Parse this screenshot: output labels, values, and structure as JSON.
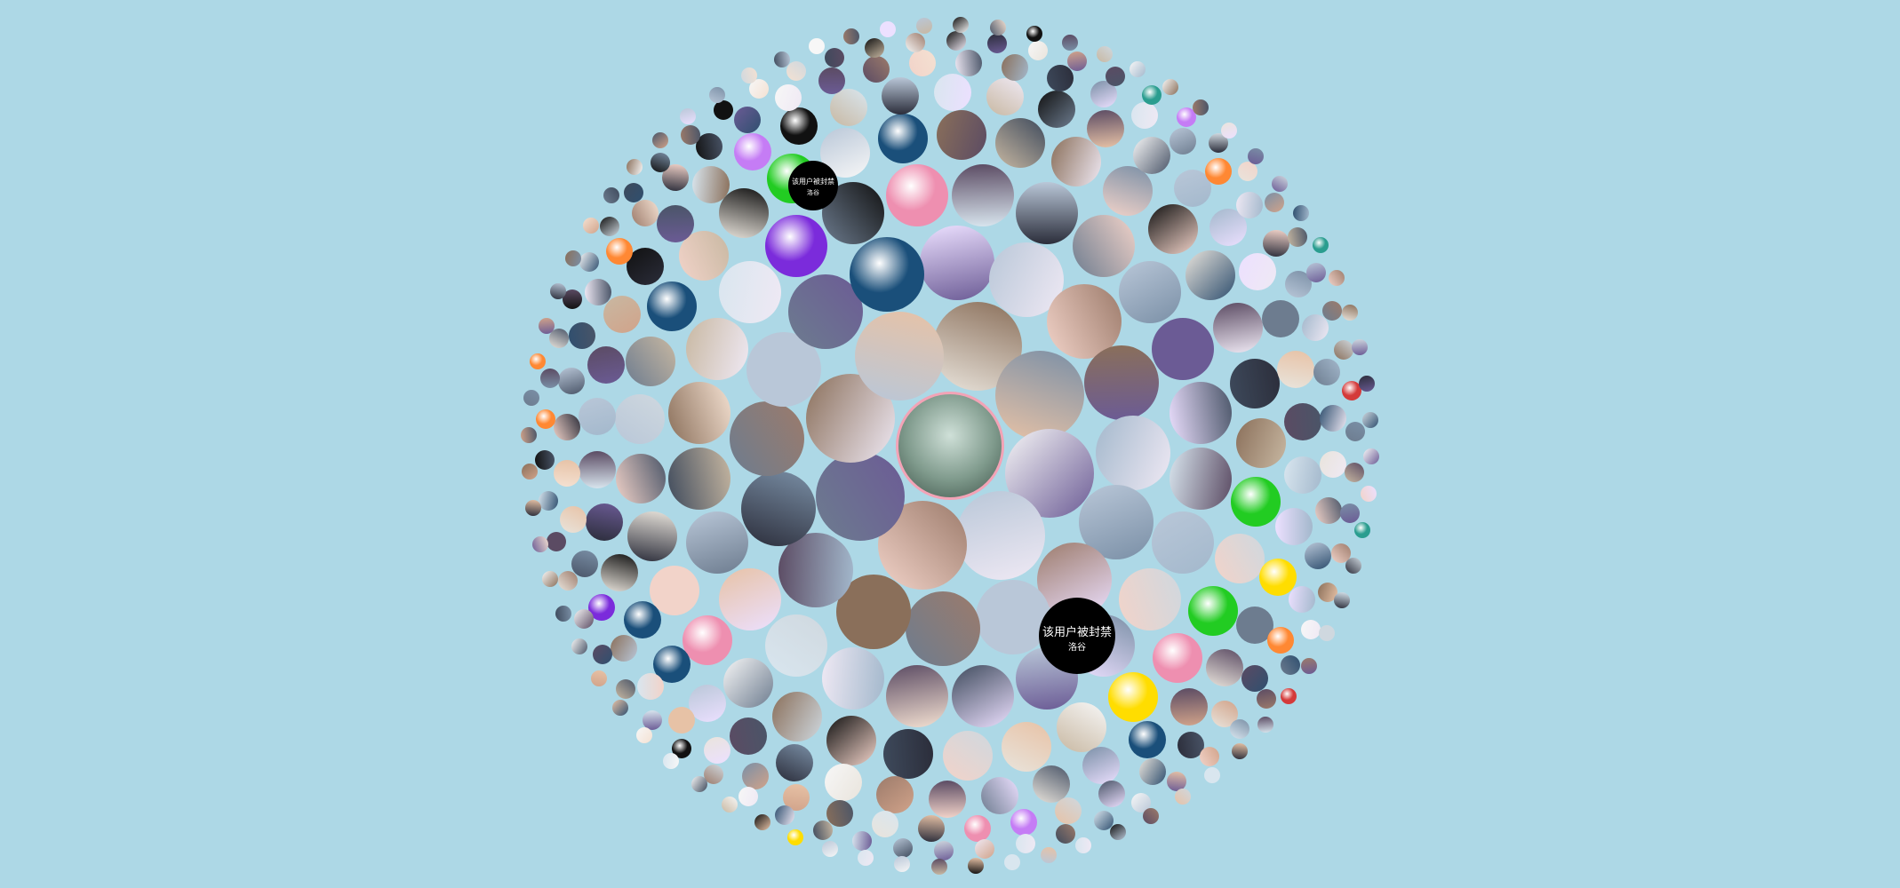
{
  "background_color": "#add8e6",
  "banned_avatars": [
    {
      "line1": "该用户被封禁",
      "line2": "洛谷"
    },
    {
      "line1": "该用户被封禁",
      "line2": "洛谷"
    }
  ],
  "ring_counts": [
    1,
    8,
    16,
    24,
    33,
    42,
    52,
    62,
    72
  ],
  "palette": [
    "#2b2d3a",
    "#e9e4dc",
    "#c8b8a2",
    "#6d7c8f",
    "#f2d3c9",
    "#3e4a5c",
    "#d9e6ef",
    "#8a6f5a",
    "#f7f7f7",
    "#111111",
    "#b9c7d8",
    "#5b4b63",
    "#e7c2a6",
    "#7a8fa6",
    "#cfd8df",
    "#9c7b6b",
    "#f4e1d2",
    "#4a5568",
    "#a3b8cc",
    "#efe9f4",
    "#2f4f6f",
    "#d1a38a",
    "#ece0ff",
    "#6b5b95"
  ],
  "accent_colors": [
    "#22cc22",
    "#7b2bdb",
    "#ffdd00",
    "#111111",
    "#1a4f7a",
    "#ee8fb0",
    "#d43a3a",
    "#c57cf5",
    "#ff8833",
    "#2a9d8f"
  ]
}
